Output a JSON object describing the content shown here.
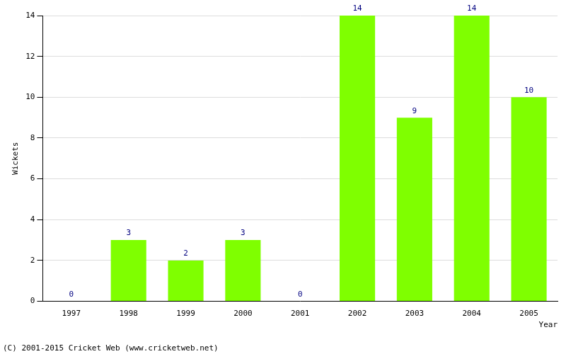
{
  "chart_data": {
    "type": "bar",
    "categories": [
      "1997",
      "1998",
      "1999",
      "2000",
      "2001",
      "2002",
      "2003",
      "2004",
      "2005"
    ],
    "values": [
      0,
      3,
      2,
      3,
      0,
      14,
      9,
      14,
      10
    ],
    "color": "#7fff00",
    "x_label": "Year",
    "y_label": "Wickets",
    "ylim": [
      0,
      14
    ],
    "yticks": [
      0,
      2,
      4,
      6,
      8,
      10,
      12,
      14
    ],
    "grid": true,
    "data_labels": true,
    "annotations": [
      "(C) 2001-2015 Cricket Web (www.cricketweb.net)"
    ]
  }
}
